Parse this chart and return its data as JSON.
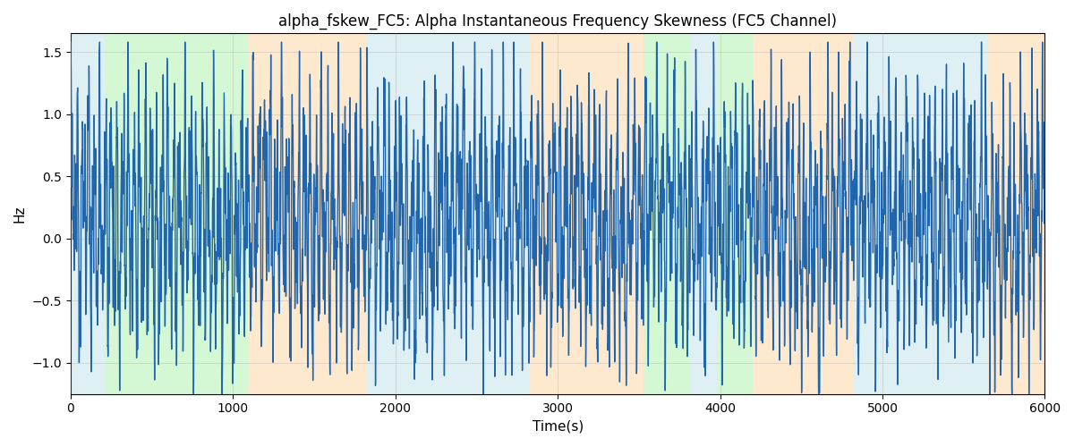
{
  "title": "alpha_fskew_FC5: Alpha Instantaneous Frequency Skewness (FC5 Channel)",
  "xlabel": "Time(s)",
  "ylabel": "Hz",
  "xlim": [
    0,
    6000
  ],
  "ylim": [
    -1.25,
    1.65
  ],
  "figsize": [
    12.0,
    5.0
  ],
  "dpi": 100,
  "line_color": "#2166ac",
  "line_width": 1.0,
  "grid": true,
  "grid_color": "#999999",
  "grid_alpha": 0.4,
  "segments": [
    {
      "start": 0,
      "end": 210,
      "color": "#add8e6",
      "alpha": 0.38
    },
    {
      "start": 210,
      "end": 1090,
      "color": "#90ee90",
      "alpha": 0.38
    },
    {
      "start": 1090,
      "end": 1820,
      "color": "#ffd59e",
      "alpha": 0.5
    },
    {
      "start": 1820,
      "end": 2820,
      "color": "#add8e6",
      "alpha": 0.38
    },
    {
      "start": 2820,
      "end": 3530,
      "color": "#ffd59e",
      "alpha": 0.5
    },
    {
      "start": 3530,
      "end": 3820,
      "color": "#90ee90",
      "alpha": 0.38
    },
    {
      "start": 3820,
      "end": 3980,
      "color": "#add8e6",
      "alpha": 0.38
    },
    {
      "start": 3980,
      "end": 4200,
      "color": "#90ee90",
      "alpha": 0.38
    },
    {
      "start": 4200,
      "end": 4820,
      "color": "#ffd59e",
      "alpha": 0.5
    },
    {
      "start": 4820,
      "end": 5650,
      "color": "#add8e6",
      "alpha": 0.38
    },
    {
      "start": 5650,
      "end": 6000,
      "color": "#ffd59e",
      "alpha": 0.5
    }
  ],
  "seed": 42,
  "n_points": 6000
}
